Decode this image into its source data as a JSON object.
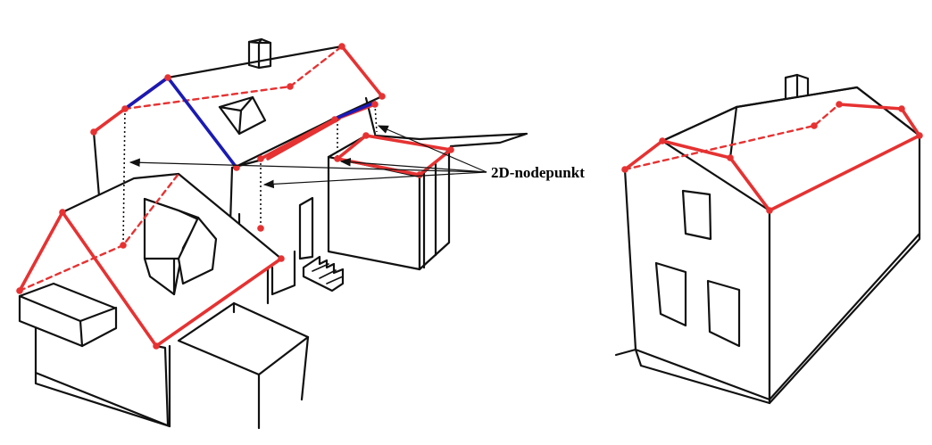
{
  "annotation": {
    "label": "2D-nodepunkt"
  },
  "colors": {
    "ridge_edges": "#e63232",
    "valley_edges": "#1a1ab4",
    "outline": "#111111",
    "background": "#ffffff"
  }
}
